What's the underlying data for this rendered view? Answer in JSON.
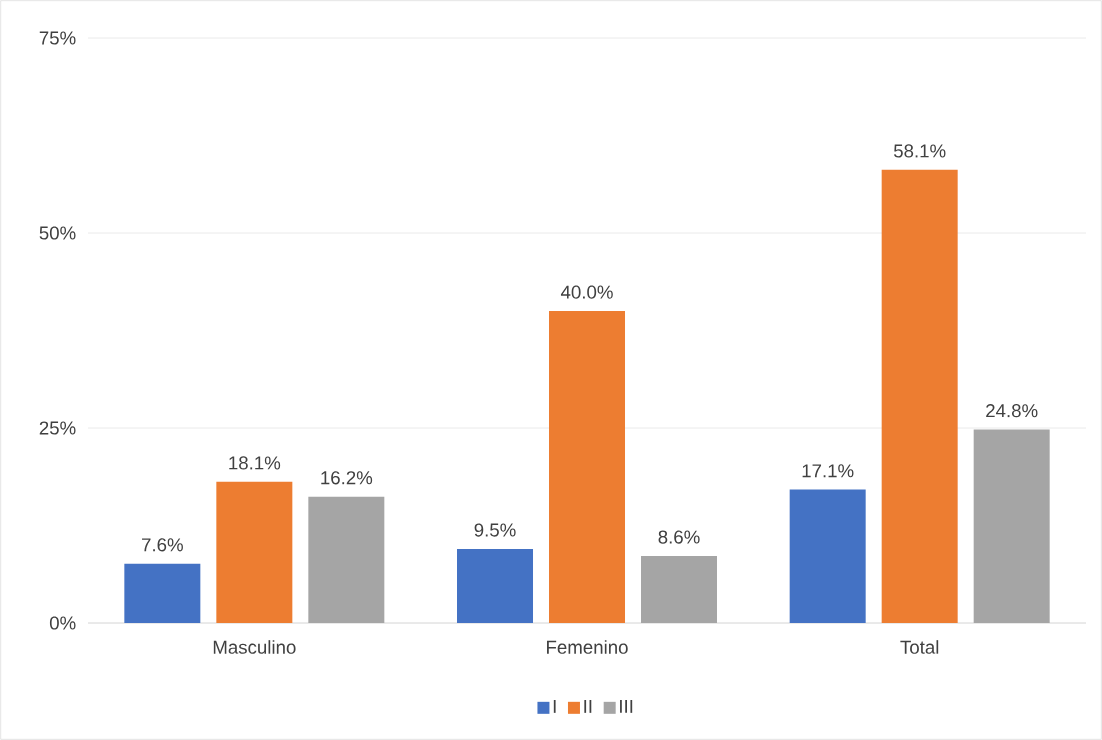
{
  "chart_data": {
    "type": "bar",
    "categories": [
      "Masculino",
      "Femenino",
      "Total"
    ],
    "series": [
      {
        "name": "I",
        "color": "#4472c4",
        "values": [
          7.6,
          9.5,
          17.1
        ],
        "value_labels": [
          "7.6%",
          "9.5%",
          "17.1%"
        ]
      },
      {
        "name": "II",
        "color": "#ed7d31",
        "values": [
          18.1,
          40.0,
          58.1
        ],
        "value_labels": [
          "18.1%",
          "40.0%",
          "58.1%"
        ]
      },
      {
        "name": "III",
        "color": "#a5a5a5",
        "values": [
          16.2,
          8.6,
          24.8
        ],
        "value_labels": [
          "16.2%",
          "8.6%",
          "24.8%"
        ]
      }
    ],
    "ylim": [
      0,
      75
    ],
    "yticks": [
      {
        "value": 0,
        "label": "0%"
      },
      {
        "value": 25,
        "label": "25%"
      },
      {
        "value": 50,
        "label": "50%"
      },
      {
        "value": 75,
        "label": "75%"
      }
    ],
    "grid": "y",
    "legend": "bottom"
  }
}
